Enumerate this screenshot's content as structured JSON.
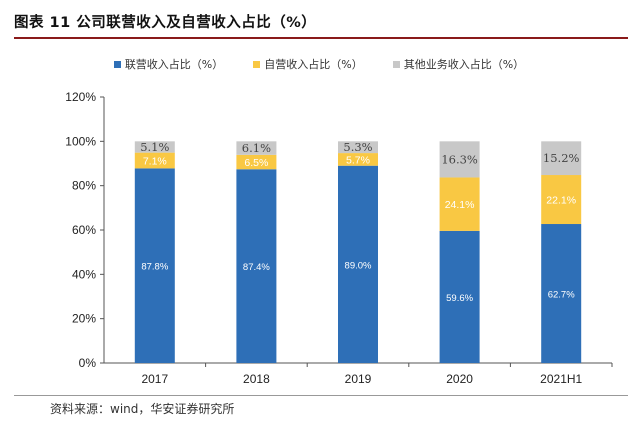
{
  "header": {
    "title": "图表 11 公司联营收入及自营收入占比（%）"
  },
  "legend": {
    "items": [
      {
        "label": "联营收入占比（%）",
        "color": "#2e6fb7"
      },
      {
        "label": "自营收入占比（%）",
        "color": "#f9c843"
      },
      {
        "label": "其他业务收入占比（%）",
        "color": "#c8c8c8"
      }
    ]
  },
  "footer": {
    "source": "资料来源：wind，华安证券研究所"
  },
  "chart_data": {
    "type": "bar",
    "stacked": true,
    "categories": [
      "2017",
      "2018",
      "2019",
      "2020",
      "2021H1"
    ],
    "series": [
      {
        "name": "联营收入占比（%）",
        "color": "#2e6fb7",
        "values": [
          87.8,
          87.4,
          89.0,
          59.6,
          62.7
        ],
        "labels": [
          "87.8%",
          "87.4%",
          "89.0%",
          "59.6%",
          "62.7%"
        ]
      },
      {
        "name": "自营收入占比（%）",
        "color": "#f9c843",
        "values": [
          7.1,
          6.5,
          5.7,
          24.1,
          22.1
        ],
        "labels": [
          "7.1%",
          "6.5%",
          "5.7%",
          "24.1%",
          "22.1%"
        ]
      },
      {
        "name": "其他业务收入占比（%）",
        "color": "#c8c8c8",
        "values": [
          5.1,
          6.1,
          5.3,
          16.3,
          15.2
        ],
        "labels": [
          "5.1%",
          "6.1%",
          "5.3%",
          "16.3%",
          "15.2%"
        ]
      }
    ],
    "yticks": [
      "0%",
      "20%",
      "40%",
      "60%",
      "80%",
      "100%",
      "120%"
    ],
    "ylim": [
      0,
      120
    ],
    "grid": false,
    "legend_position": "top"
  }
}
